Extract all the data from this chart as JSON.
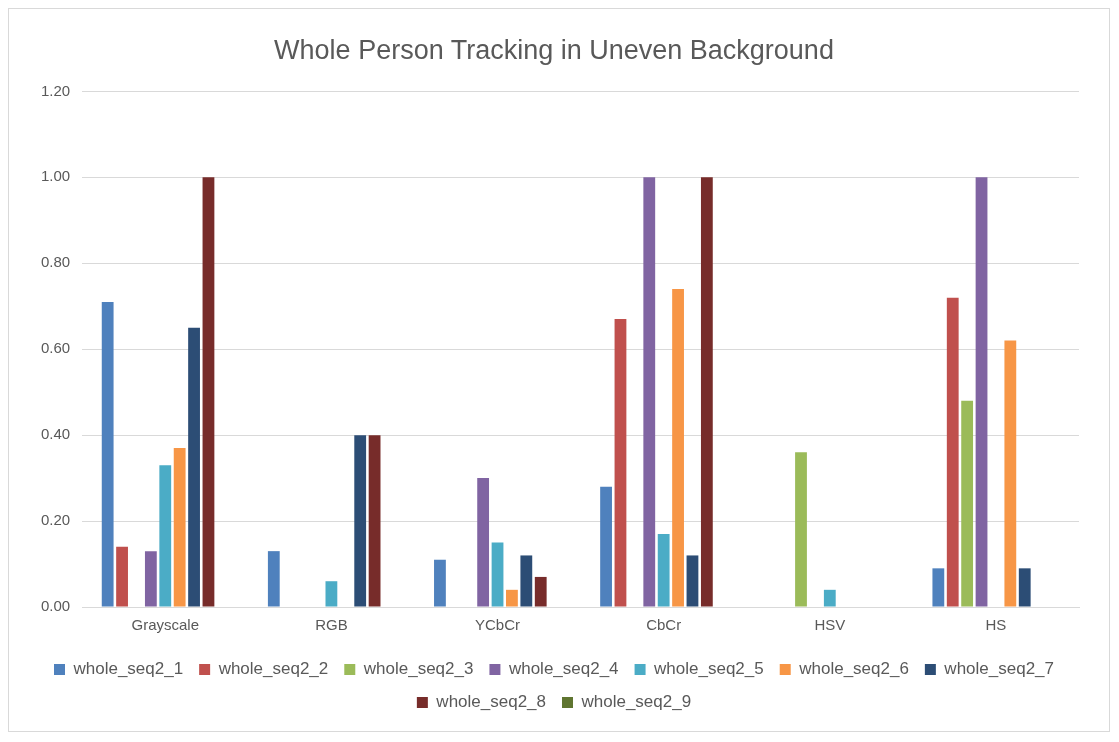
{
  "chart_data": {
    "type": "bar",
    "title": "Whole Person Tracking in Uneven Background",
    "categories": [
      "Grayscale",
      "RGB",
      "YCbCr",
      "CbCr",
      "HSV",
      "HS"
    ],
    "series": [
      {
        "name": "whole_seq2_1",
        "color": "#4f81bd",
        "values": [
          0.71,
          0.13,
          0.11,
          0.28,
          0,
          0.09
        ]
      },
      {
        "name": "whole_seq2_2",
        "color": "#c0504d",
        "values": [
          0.14,
          0,
          0,
          0.67,
          0,
          0.72
        ]
      },
      {
        "name": "whole_seq2_3",
        "color": "#9bbb59",
        "values": [
          0,
          0,
          0,
          0,
          0.36,
          0.48
        ]
      },
      {
        "name": "whole_seq2_4",
        "color": "#8064a2",
        "values": [
          0.13,
          0,
          0.3,
          1.0,
          0,
          1.0
        ]
      },
      {
        "name": "whole_seq2_5",
        "color": "#4bacc6",
        "values": [
          0.33,
          0.06,
          0.15,
          0.17,
          0.04,
          0
        ]
      },
      {
        "name": "whole_seq2_6",
        "color": "#f79646",
        "values": [
          0.37,
          0,
          0.04,
          0.74,
          0,
          0.62
        ]
      },
      {
        "name": "whole_seq2_7",
        "color": "#2c4d75",
        "values": [
          0.65,
          0.4,
          0.12,
          0.12,
          0,
          0.09
        ]
      },
      {
        "name": "whole_seq2_8",
        "color": "#772c2a",
        "values": [
          1.0,
          0.4,
          0.07,
          1.0,
          0,
          0
        ]
      },
      {
        "name": "whole_seq2_9",
        "color": "#5f7530",
        "values": [
          0,
          0,
          0,
          0,
          0,
          0
        ]
      }
    ],
    "ylim": [
      0,
      1.2
    ],
    "yticks": [
      {
        "value": 0,
        "label": "0.00"
      },
      {
        "value": 0.2,
        "label": "0.20"
      },
      {
        "value": 0.4,
        "label": "0.40"
      },
      {
        "value": 0.6,
        "label": "0.60"
      },
      {
        "value": 0.8,
        "label": "0.80"
      },
      {
        "value": 1,
        "label": "1.00"
      },
      {
        "value": 1.2,
        "label": "1.20"
      }
    ],
    "grid": "y",
    "legend": "bottom"
  }
}
